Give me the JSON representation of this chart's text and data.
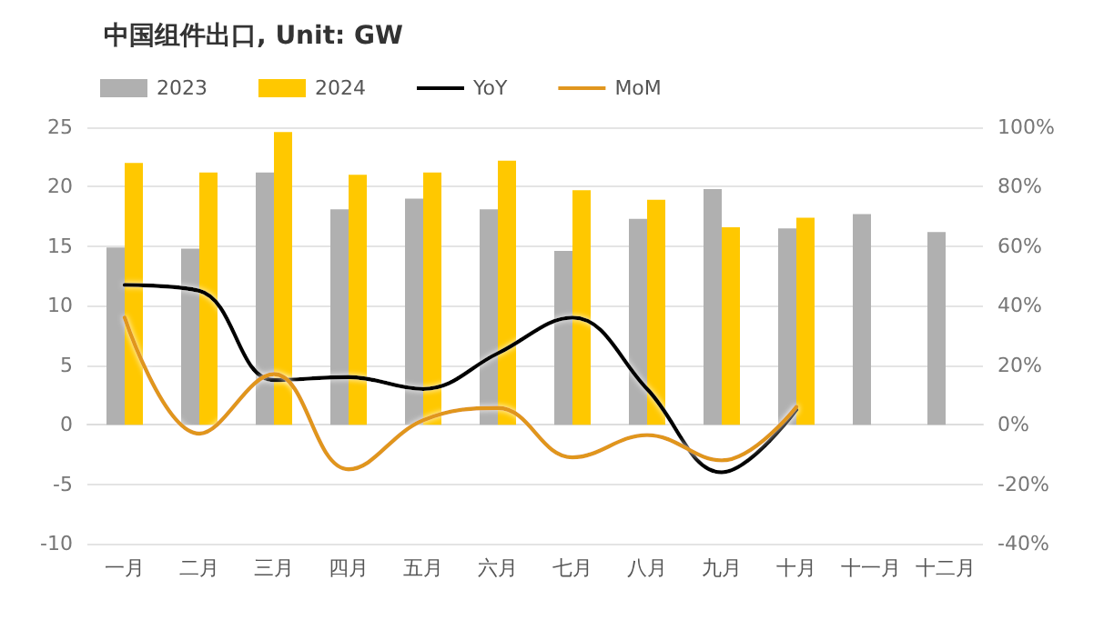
{
  "chart_data": {
    "type": "bar",
    "title": "中国组件出口, Unit: GW",
    "categories": [
      "一月",
      "二月",
      "三月",
      "四月",
      "五月",
      "六月",
      "七月",
      "八月",
      "九月",
      "十月",
      "十一月",
      "十二月"
    ],
    "series": [
      {
        "name": "2023",
        "color": "#b0b0b0",
        "values": [
          14.9,
          14.8,
          21.2,
          18.1,
          19.0,
          18.1,
          14.6,
          17.3,
          19.8,
          16.5,
          17.7,
          16.2
        ]
      },
      {
        "name": "2024",
        "color": "#ffc800",
        "values": [
          22.0,
          21.2,
          24.6,
          21.0,
          21.2,
          22.2,
          19.7,
          18.9,
          16.6,
          17.4,
          null,
          null
        ]
      },
      {
        "name": "YoY",
        "type": "line",
        "axis": "y2",
        "color": "#000000",
        "values": [
          47,
          45,
          15,
          16,
          12,
          24,
          36,
          12,
          -16,
          5,
          null,
          null
        ]
      },
      {
        "name": "MoM",
        "type": "line",
        "axis": "y2",
        "color": "#e0961e",
        "values": [
          36,
          -3,
          17,
          -15,
          1.5,
          5.6,
          -11,
          -3.5,
          -12,
          6,
          null,
          null
        ]
      }
    ],
    "ylim": [
      -10,
      25
    ],
    "yticks": [
      -10,
      -5,
      0,
      5,
      10,
      15,
      20,
      25
    ],
    "y2lim": [
      -40,
      100
    ],
    "y2ticks": [
      {
        "value": -40,
        "label": "-40%"
      },
      {
        "value": -20,
        "label": "-20%"
      },
      {
        "value": 0,
        "label": "0%"
      },
      {
        "value": 20,
        "label": "20%"
      },
      {
        "value": 40,
        "label": "40%"
      },
      {
        "value": 60,
        "label": "60%"
      },
      {
        "value": 80,
        "label": "80%"
      },
      {
        "value": 100,
        "label": "100%"
      }
    ],
    "grid": "y",
    "legend": "top left",
    "marker": "none",
    "line_style": "solid"
  }
}
